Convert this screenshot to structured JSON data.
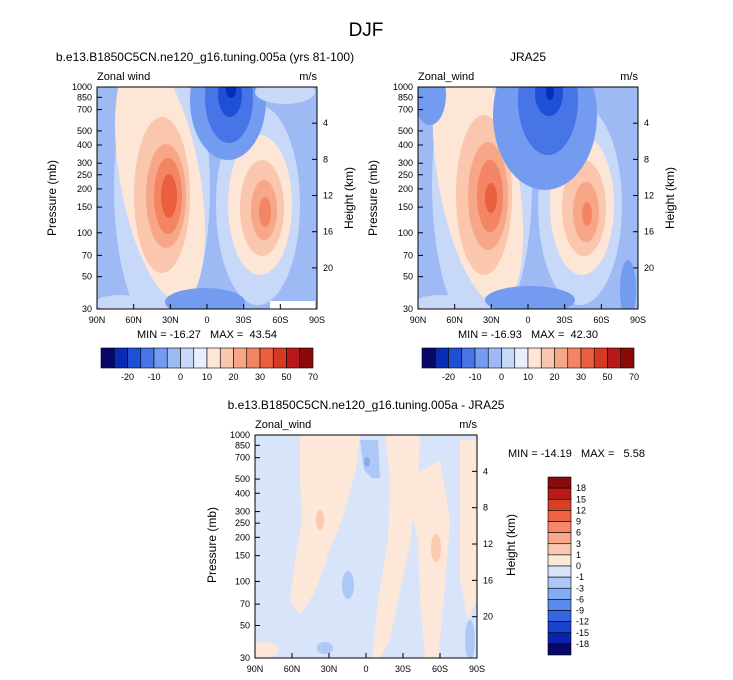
{
  "figure": {
    "title": "DJF"
  },
  "x_ticks": [
    "90N",
    "60N",
    "30N",
    "0",
    "30S",
    "60S",
    "90S"
  ],
  "p_ticks": [
    "30",
    "50",
    "70",
    "100",
    "150",
    "200",
    "250",
    "300",
    "400",
    "500",
    "700",
    "850",
    "1000"
  ],
  "labelbar_top": {
    "colors": [
      "#08086b",
      "#0a2cb4",
      "#1f4fd6",
      "#4774e6",
      "#739bf0",
      "#9dbaf5",
      "#c8d8f9",
      "#e8eefb",
      "#fde6d6",
      "#fac6ad",
      "#f7a787",
      "#f38564",
      "#ea5f3d",
      "#d63a22",
      "#b7181a",
      "#8a0a0a"
    ],
    "labels": [
      "-20",
      "-10",
      "0",
      "10",
      "20",
      "30",
      "50",
      "70"
    ]
  },
  "labelbar_diff": {
    "colors": [
      "#06066b",
      "#0a22ad",
      "#1a42d1",
      "#3565e2",
      "#5a8aed",
      "#83abf3",
      "#adc8f7",
      "#d7e4fa",
      "#fde7d8",
      "#fbc8b0",
      "#f8a98b",
      "#f48868",
      "#ec6444",
      "#d93f25",
      "#b91a17",
      "#8c0a0a"
    ],
    "labels": [
      "18",
      "15",
      "12",
      "9",
      "6",
      "3",
      "1",
      "0",
      "-1",
      "-3",
      "-6",
      "-9",
      "-12",
      "-15",
      "-18"
    ]
  },
  "chart_data": [
    {
      "type": "heatmap",
      "title": "b.e13.B1850C5CN.ne120_g16.tuning.005a (yrs 81-100)",
      "left_label": "Zonal wind",
      "right_label": "m/s",
      "ylabel": "Pressure (mb)",
      "y2label": "Height (km)",
      "y2_ticks": [
        "4",
        "8",
        "12",
        "16",
        "20"
      ],
      "stats": "MIN = -16.27   MAX =  43.54",
      "min": -16.27,
      "max": 43.54,
      "jets": [
        {
          "lat": 30,
          "p": 200,
          "max": 43.54
        },
        {
          "lat": -45,
          "p": 200,
          "max": 35
        }
      ],
      "easterly_core": {
        "lat": 10,
        "p": 30,
        "min": -16.27
      }
    },
    {
      "type": "heatmap",
      "title": "JRA25",
      "left_label": "Zonal_wind",
      "right_label": "m/s",
      "ylabel": "Pressure (mb)",
      "y2label": "Height (km)",
      "y2_ticks": [
        "4",
        "8",
        "12",
        "16",
        "20"
      ],
      "stats": "MIN = -16.93   MAX =  42.30",
      "min": -16.93,
      "max": 42.3,
      "jets": [
        {
          "lat": 30,
          "p": 200,
          "max": 42.3
        },
        {
          "lat": -45,
          "p": 200,
          "max": 34
        }
      ],
      "easterly_core": {
        "lat": 10,
        "p": 30,
        "min": -16.93
      }
    },
    {
      "type": "heatmap",
      "title": "b.e13.B1850C5CN.ne120_g16.tuning.005a - JRA25",
      "left_label": "Zonal_wind",
      "right_label": "m/s",
      "ylabel": "Pressure (mb)",
      "y2label": "Height (km)",
      "y2_ticks": [
        "4",
        "8",
        "12",
        "16",
        "20"
      ],
      "stats": "MIN = -14.19   MAX =   5.58",
      "min": -14.19,
      "max": 5.58
    }
  ]
}
